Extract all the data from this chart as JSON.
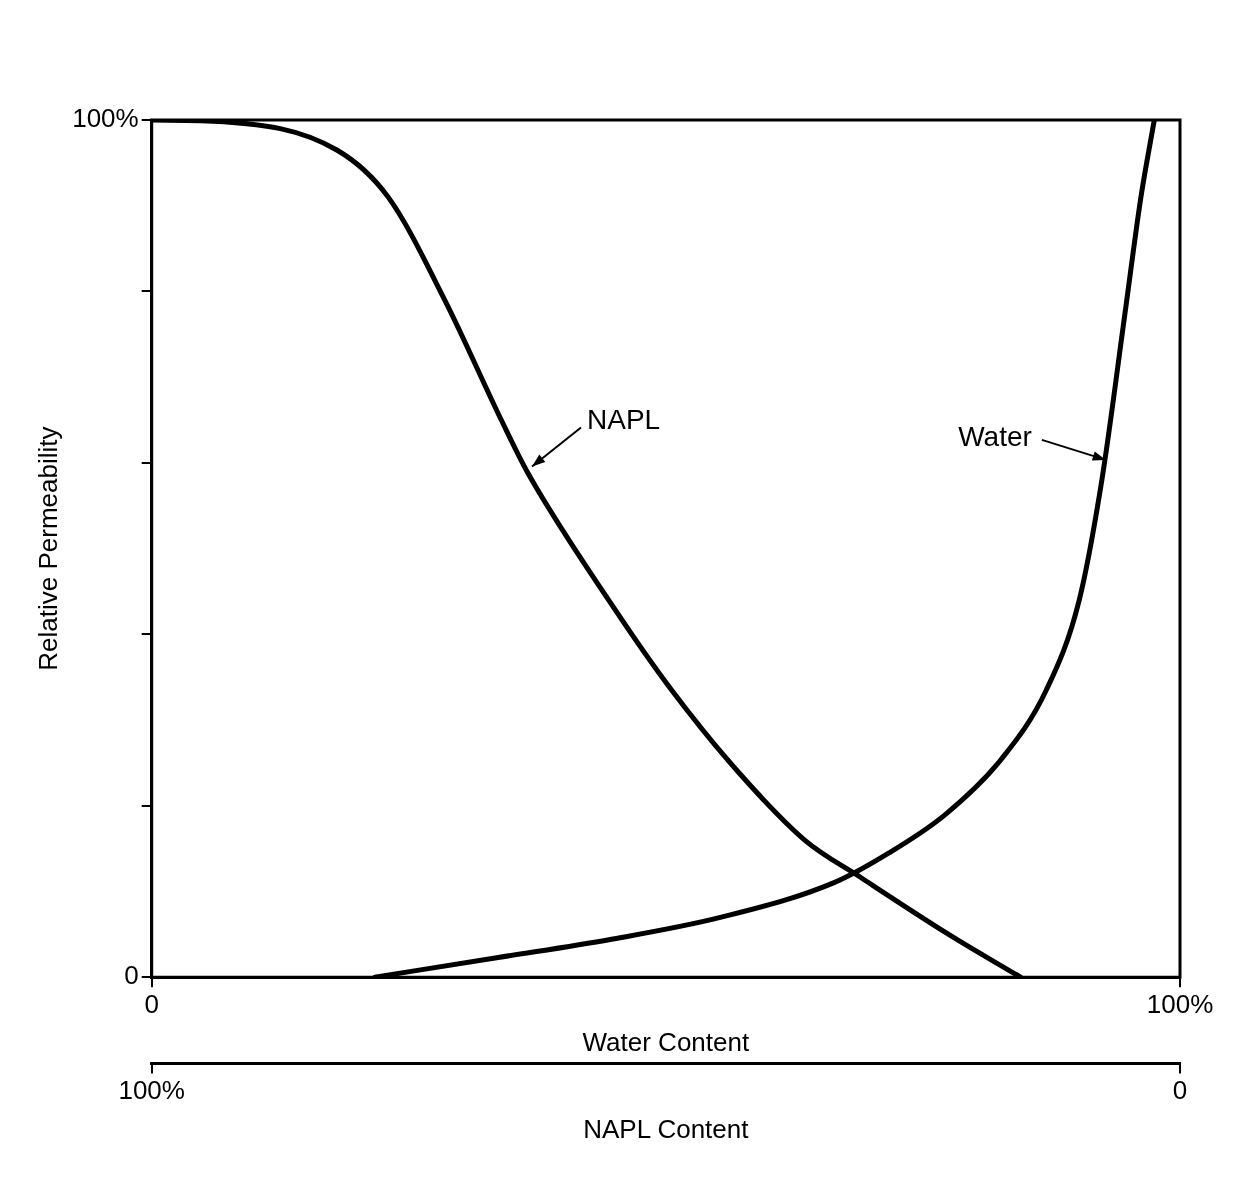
{
  "chart_data": {
    "type": "line",
    "ylabel": "Relative Permeability",
    "xlabel": "Water Content",
    "x2label": "NAPL Content",
    "xlim": [
      0,
      100
    ],
    "xticks": [
      {
        "value": 0,
        "label": "0"
      },
      {
        "value": 100,
        "label": "100%"
      }
    ],
    "x2lim": [
      100,
      0
    ],
    "x2ticks": [
      {
        "value": 100,
        "label": "100%"
      },
      {
        "value": 0,
        "label": "0"
      }
    ],
    "ylim": [
      0,
      100
    ],
    "yticks": [
      {
        "value": 0,
        "label": "0"
      },
      {
        "value": 20,
        "label": null
      },
      {
        "value": 40,
        "label": null
      },
      {
        "value": 60,
        "label": null
      },
      {
        "value": 80,
        "label": null
      },
      {
        "value": 100,
        "label": "100%"
      }
    ],
    "grid": false,
    "legend": false,
    "marker": "none",
    "line_style": "solid",
    "series": [
      {
        "color": "#000000",
        "x": [
          0,
          7,
          18,
          23,
          28.5,
          34,
          36.5,
          45,
          50.5,
          57,
          63.5,
          69,
          77.5,
          84.5
        ],
        "values": [
          100,
          99.8,
          96.5,
          91,
          79,
          65,
          59,
          43,
          33.6,
          24,
          16,
          11.6,
          5,
          0
        ]
      },
      {
        "color": "#000000",
        "x": [
          21.7,
          33.7,
          44.6,
          55.4,
          66.3,
          71.7,
          77.2,
          82.6,
          87,
          90.2,
          92.4,
          94.6,
          96.2,
          97.5
        ],
        "values": [
          0,
          2.3,
          4.4,
          7,
          11,
          14.5,
          19,
          25.4,
          33.5,
          44,
          58,
          77,
          91,
          100
        ]
      }
    ],
    "annotations": [
      {
        "text": "NAPL",
        "x": 36.5,
        "y": 59
      },
      {
        "text": "Water",
        "x": 92.4,
        "y": 60
      }
    ]
  }
}
